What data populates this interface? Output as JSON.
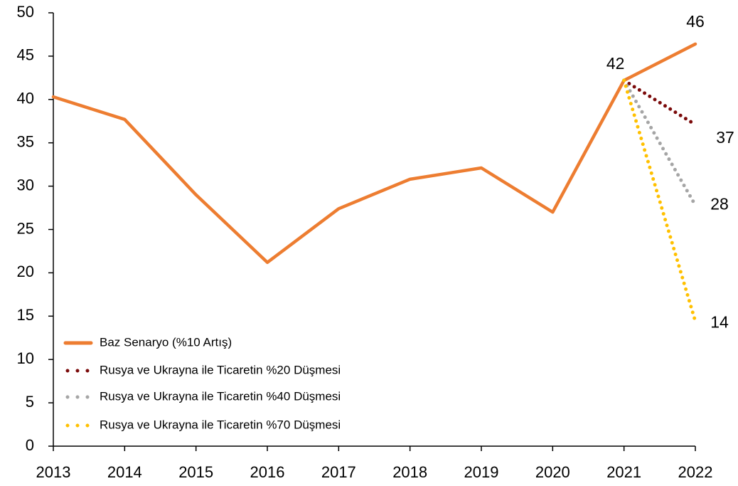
{
  "chart_data": {
    "type": "line",
    "categories": [
      "2013",
      "2014",
      "2015",
      "2016",
      "2017",
      "2018",
      "2019",
      "2020",
      "2021",
      "2022"
    ],
    "series": [
      {
        "name": "Baz Senaryo (%10 Artış)",
        "color": "#ED7D31",
        "style": "solid",
        "values": [
          40.3,
          37.7,
          29.0,
          21.2,
          27.4,
          30.8,
          32.1,
          27.0,
          42.2,
          46.4
        ],
        "value_labels": [
          null,
          null,
          null,
          null,
          null,
          null,
          null,
          null,
          "42",
          "46"
        ]
      },
      {
        "name": "Rusya ve Ukrayna ile Ticaretin %20 Düşmesi",
        "color": "#7B0A0A",
        "style": "dotted",
        "values": [
          null,
          null,
          null,
          null,
          null,
          null,
          null,
          null,
          42.2,
          37.1
        ],
        "value_labels": [
          null,
          null,
          null,
          null,
          null,
          null,
          null,
          null,
          null,
          "37"
        ]
      },
      {
        "name": "Rusya ve Ukrayna ile Ticaretin %40 Düşmesi",
        "color": "#A5A5A5",
        "style": "dotted",
        "values": [
          null,
          null,
          null,
          null,
          null,
          null,
          null,
          null,
          42.2,
          27.8
        ],
        "value_labels": [
          null,
          null,
          null,
          null,
          null,
          null,
          null,
          null,
          null,
          "28"
        ]
      },
      {
        "name": "Rusya ve Ukrayna ile Ticaretin %70 Düşmesi",
        "color": "#FFC000",
        "style": "dotted",
        "values": [
          null,
          null,
          null,
          null,
          null,
          null,
          null,
          null,
          42.2,
          14.4
        ],
        "value_labels": [
          null,
          null,
          null,
          null,
          null,
          null,
          null,
          null,
          null,
          "14"
        ]
      }
    ],
    "ylim": [
      0,
      50
    ],
    "yticks": [
      0,
      5,
      10,
      15,
      20,
      25,
      30,
      35,
      40,
      45,
      50
    ],
    "grid": false,
    "legend": "lower left"
  }
}
